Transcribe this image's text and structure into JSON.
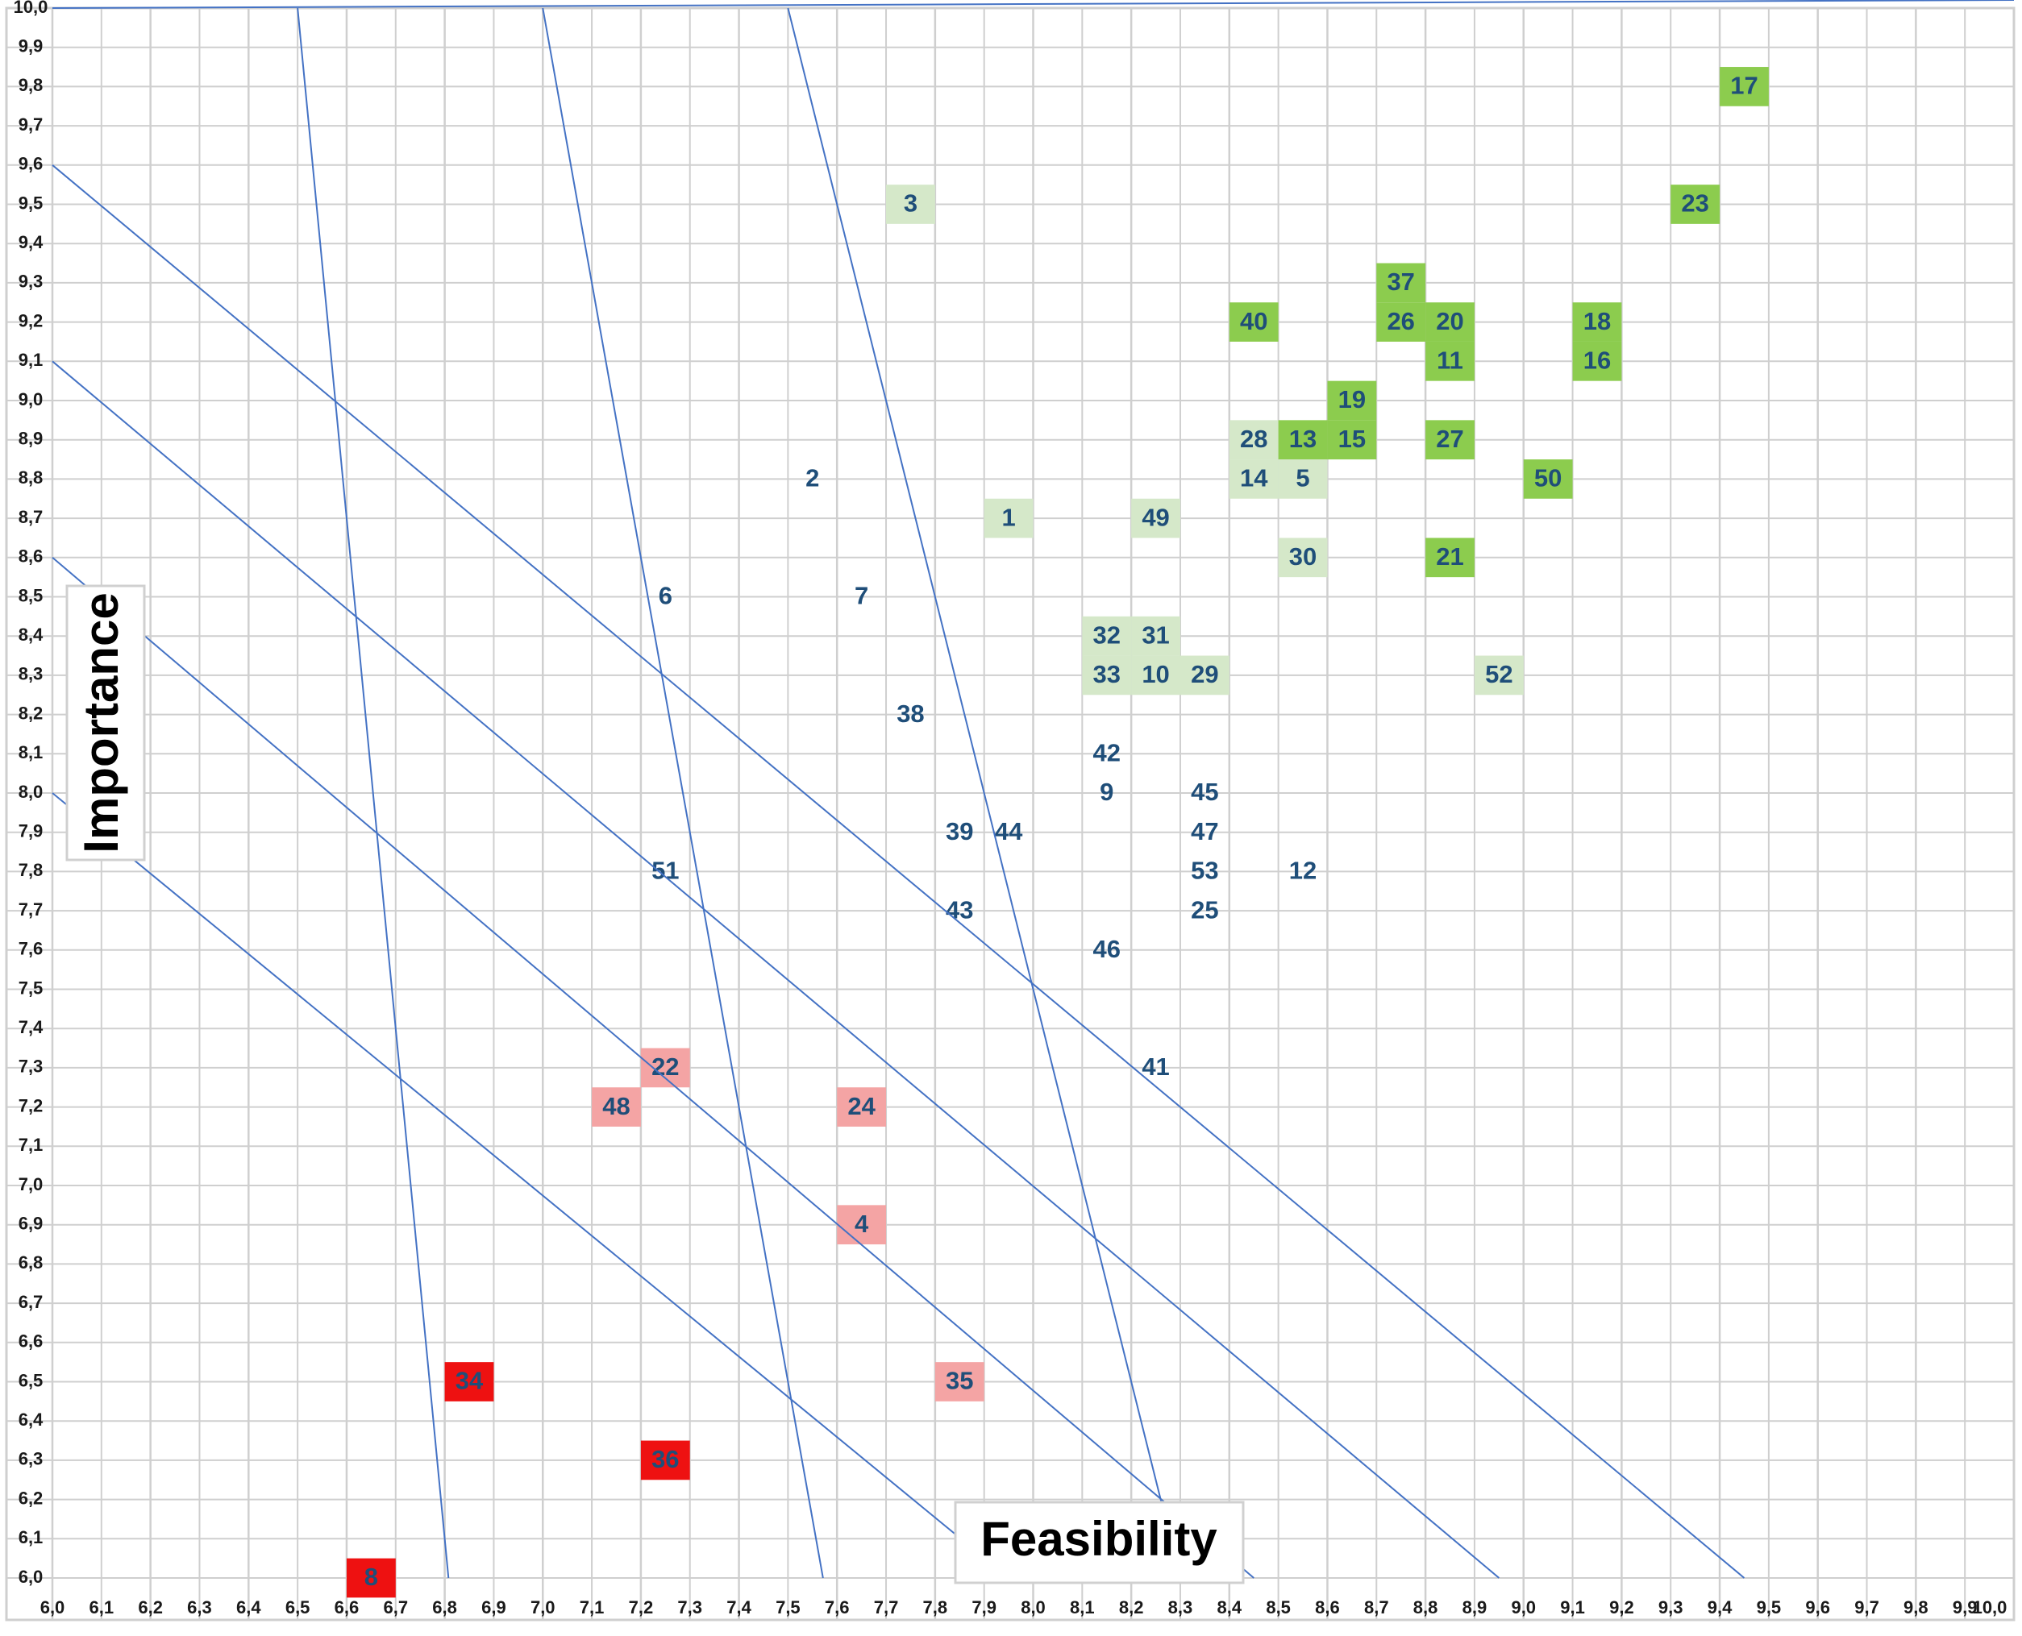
{
  "chart_data": {
    "type": "scatter",
    "title": "",
    "xlabel": "Feasibility",
    "ylabel": "Importance",
    "xlim": [
      6.0,
      10.0
    ],
    "ylim": [
      6.0,
      10.0
    ],
    "grid": true,
    "x_ticks": [
      "6,0",
      "6,1",
      "6,2",
      "6,3",
      "6,4",
      "6,5",
      "6,6",
      "6,7",
      "6,8",
      "6,9",
      "7,0",
      "7,1",
      "7,2",
      "7,3",
      "7,4",
      "7,5",
      "7,6",
      "7,7",
      "7,8",
      "7,9",
      "8,0",
      "8,1",
      "8,2",
      "8,3",
      "8,4",
      "8,5",
      "8,6",
      "8,7",
      "8,8",
      "8,9",
      "9,0",
      "9,1",
      "9,2",
      "9,3",
      "9,4",
      "9,5",
      "9,6",
      "9,7",
      "9,8",
      "9,9",
      "10,0"
    ],
    "y_ticks": [
      "6,0",
      "6,1",
      "6,2",
      "6,3",
      "6,4",
      "6,5",
      "6,6",
      "6,7",
      "6,8",
      "6,9",
      "7,0",
      "7,1",
      "7,2",
      "7,3",
      "7,4",
      "7,5",
      "7,6",
      "7,7",
      "7,8",
      "7,9",
      "8,0",
      "8,1",
      "8,2",
      "8,3",
      "8,4",
      "8,5",
      "8,6",
      "8,7",
      "8,8",
      "8,9",
      "9,0",
      "9,1",
      "9,2",
      "9,3",
      "9,4",
      "9,5",
      "9,6",
      "9,7",
      "9,8",
      "9,9",
      "10,0"
    ],
    "diagonal_lines": [
      {
        "x_at_top": 6.0,
        "y_at_left": 16.0
      },
      {
        "x_at_top": 6.5,
        "y_at_left": 16.5
      },
      {
        "x_at_top": 7.0,
        "y_at_left": 17.0
      },
      {
        "x_at_top": 7.5,
        "y_at_left": 17.5
      },
      {
        "y_at_left": 9.6,
        "x_at_bottom": 9.45
      },
      {
        "y_at_left": 9.1,
        "x_at_bottom": 8.95
      },
      {
        "y_at_left": 8.6,
        "x_at_bottom": 8.45
      },
      {
        "y_at_left": 8.0,
        "x_at_bottom": 7.95
      }
    ],
    "colors": {
      "dark_green": "#8ccc4e",
      "light_green": "#d5e8c9",
      "light_red": "#f4a4a4",
      "red": "#ee1111",
      "label": "#1f4e79",
      "line": "#4472c4",
      "grid": "#cfcfcf"
    },
    "points": [
      {
        "id": "17",
        "x": 9.45,
        "y": 9.8,
        "fill": "dark_green"
      },
      {
        "id": "23",
        "x": 9.35,
        "y": 9.5,
        "fill": "dark_green"
      },
      {
        "id": "3",
        "x": 7.75,
        "y": 9.5,
        "fill": "light_green"
      },
      {
        "id": "37",
        "x": 8.75,
        "y": 9.3,
        "fill": "dark_green"
      },
      {
        "id": "40",
        "x": 8.45,
        "y": 9.2,
        "fill": "dark_green"
      },
      {
        "id": "26",
        "x": 8.75,
        "y": 9.2,
        "fill": "dark_green"
      },
      {
        "id": "20",
        "x": 8.85,
        "y": 9.2,
        "fill": "dark_green"
      },
      {
        "id": "18",
        "x": 9.15,
        "y": 9.2,
        "fill": "dark_green"
      },
      {
        "id": "11",
        "x": 8.85,
        "y": 9.1,
        "fill": "dark_green"
      },
      {
        "id": "16",
        "x": 9.15,
        "y": 9.1,
        "fill": "dark_green"
      },
      {
        "id": "19",
        "x": 8.65,
        "y": 9.0,
        "fill": "dark_green"
      },
      {
        "id": "28",
        "x": 8.45,
        "y": 8.9,
        "fill": "light_green"
      },
      {
        "id": "13",
        "x": 8.55,
        "y": 8.9,
        "fill": "dark_green"
      },
      {
        "id": "15",
        "x": 8.65,
        "y": 8.9,
        "fill": "dark_green"
      },
      {
        "id": "27",
        "x": 8.85,
        "y": 8.9,
        "fill": "dark_green"
      },
      {
        "id": "14",
        "x": 8.45,
        "y": 8.8,
        "fill": "light_green"
      },
      {
        "id": "5",
        "x": 8.55,
        "y": 8.8,
        "fill": "light_green"
      },
      {
        "id": "50",
        "x": 9.05,
        "y": 8.8,
        "fill": "dark_green"
      },
      {
        "id": "2",
        "x": 7.55,
        "y": 8.8,
        "fill": "none"
      },
      {
        "id": "1",
        "x": 7.95,
        "y": 8.7,
        "fill": "light_green"
      },
      {
        "id": "49",
        "x": 8.25,
        "y": 8.7,
        "fill": "light_green"
      },
      {
        "id": "30",
        "x": 8.55,
        "y": 8.6,
        "fill": "light_green"
      },
      {
        "id": "21",
        "x": 8.85,
        "y": 8.6,
        "fill": "dark_green"
      },
      {
        "id": "6",
        "x": 7.25,
        "y": 8.5,
        "fill": "none"
      },
      {
        "id": "7",
        "x": 7.65,
        "y": 8.5,
        "fill": "none"
      },
      {
        "id": "32",
        "x": 8.15,
        "y": 8.4,
        "fill": "light_green"
      },
      {
        "id": "31",
        "x": 8.25,
        "y": 8.4,
        "fill": "light_green"
      },
      {
        "id": "33",
        "x": 8.15,
        "y": 8.3,
        "fill": "light_green"
      },
      {
        "id": "10",
        "x": 8.25,
        "y": 8.3,
        "fill": "light_green"
      },
      {
        "id": "29",
        "x": 8.35,
        "y": 8.3,
        "fill": "light_green"
      },
      {
        "id": "52",
        "x": 8.95,
        "y": 8.3,
        "fill": "light_green"
      },
      {
        "id": "38",
        "x": 7.75,
        "y": 8.2,
        "fill": "none"
      },
      {
        "id": "42",
        "x": 8.15,
        "y": 8.1,
        "fill": "none"
      },
      {
        "id": "9",
        "x": 8.15,
        "y": 8.0,
        "fill": "none"
      },
      {
        "id": "45",
        "x": 8.35,
        "y": 8.0,
        "fill": "none"
      },
      {
        "id": "39",
        "x": 7.85,
        "y": 7.9,
        "fill": "none"
      },
      {
        "id": "44",
        "x": 7.95,
        "y": 7.9,
        "fill": "none"
      },
      {
        "id": "47",
        "x": 8.35,
        "y": 7.9,
        "fill": "none"
      },
      {
        "id": "51",
        "x": 7.25,
        "y": 7.8,
        "fill": "none"
      },
      {
        "id": "53",
        "x": 8.35,
        "y": 7.8,
        "fill": "none"
      },
      {
        "id": "12",
        "x": 8.55,
        "y": 7.8,
        "fill": "none"
      },
      {
        "id": "43",
        "x": 7.85,
        "y": 7.7,
        "fill": "none"
      },
      {
        "id": "25",
        "x": 8.35,
        "y": 7.7,
        "fill": "none"
      },
      {
        "id": "46",
        "x": 8.15,
        "y": 7.6,
        "fill": "none"
      },
      {
        "id": "22",
        "x": 7.25,
        "y": 7.3,
        "fill": "light_red"
      },
      {
        "id": "41",
        "x": 8.25,
        "y": 7.3,
        "fill": "none"
      },
      {
        "id": "48",
        "x": 7.15,
        "y": 7.2,
        "fill": "light_red"
      },
      {
        "id": "24",
        "x": 7.65,
        "y": 7.2,
        "fill": "light_red"
      },
      {
        "id": "4",
        "x": 7.65,
        "y": 6.9,
        "fill": "light_red"
      },
      {
        "id": "34",
        "x": 6.85,
        "y": 6.5,
        "fill": "red"
      },
      {
        "id": "35",
        "x": 7.85,
        "y": 6.5,
        "fill": "light_red"
      },
      {
        "id": "36",
        "x": 7.25,
        "y": 6.3,
        "fill": "red"
      },
      {
        "id": "8",
        "x": 6.65,
        "y": 6.0,
        "fill": "red"
      }
    ]
  }
}
